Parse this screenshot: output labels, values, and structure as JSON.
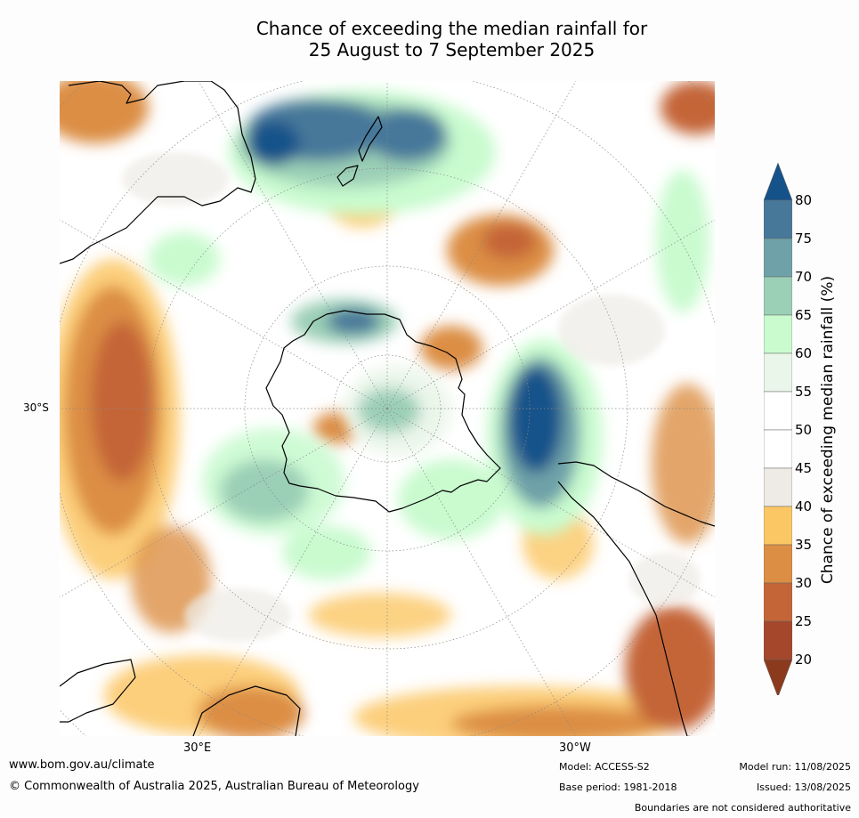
{
  "title_line1": "Chance of exceeding the median rainfall for",
  "title_line2": "25 August to 7 September 2025",
  "map": {
    "projection": "south-polar stereographic",
    "lat_label": "30°S",
    "lon_labels": {
      "east": "30°E",
      "west": "30°W"
    },
    "colors": {
      "ocean_neutral": "#ffffff",
      "land_outline": "#000000",
      "graticule": "#888888"
    }
  },
  "colorbar": {
    "title": "Chance of exceeding median rainfall (%)",
    "ticks": [
      "80",
      "75",
      "70",
      "65",
      "60",
      "55",
      "50",
      "45",
      "40",
      "35",
      "30",
      "25",
      "20"
    ],
    "bins": [
      {
        "range": "<20",
        "color": "#8b3a1e"
      },
      {
        "range": "20-25",
        "color": "#a5472a"
      },
      {
        "range": "25-30",
        "color": "#c46537"
      },
      {
        "range": "30-35",
        "color": "#dc8e44"
      },
      {
        "range": "35-40",
        "color": "#fbc764"
      },
      {
        "range": "40-45",
        "color": "#eeebe6"
      },
      {
        "range": "45-50",
        "color": "#ffffff"
      },
      {
        "range": "50-55",
        "color": "#ffffff"
      },
      {
        "range": "55-60",
        "color": "#ebf6ea"
      },
      {
        "range": "60-65",
        "color": "#c9fbcf"
      },
      {
        "range": "65-70",
        "color": "#9bcfb6"
      },
      {
        "range": "70-75",
        "color": "#6ea2a8"
      },
      {
        "range": "75-80",
        "color": "#47789a"
      },
      {
        "range": ">80",
        "color": "#16528a"
      }
    ]
  },
  "footer": {
    "url": "www.bom.gov.au/climate",
    "copyright": "© Commonwealth of Australia 2025, Australian Bureau of Meteorology",
    "model": "Model: ACCESS-S2",
    "base_period": "Base period: 1981-2018",
    "model_run": "Model run: 11/08/2025",
    "issued": "Issued: 13/08/2025",
    "disclaimer": "Boundaries are not considered authoritative"
  }
}
